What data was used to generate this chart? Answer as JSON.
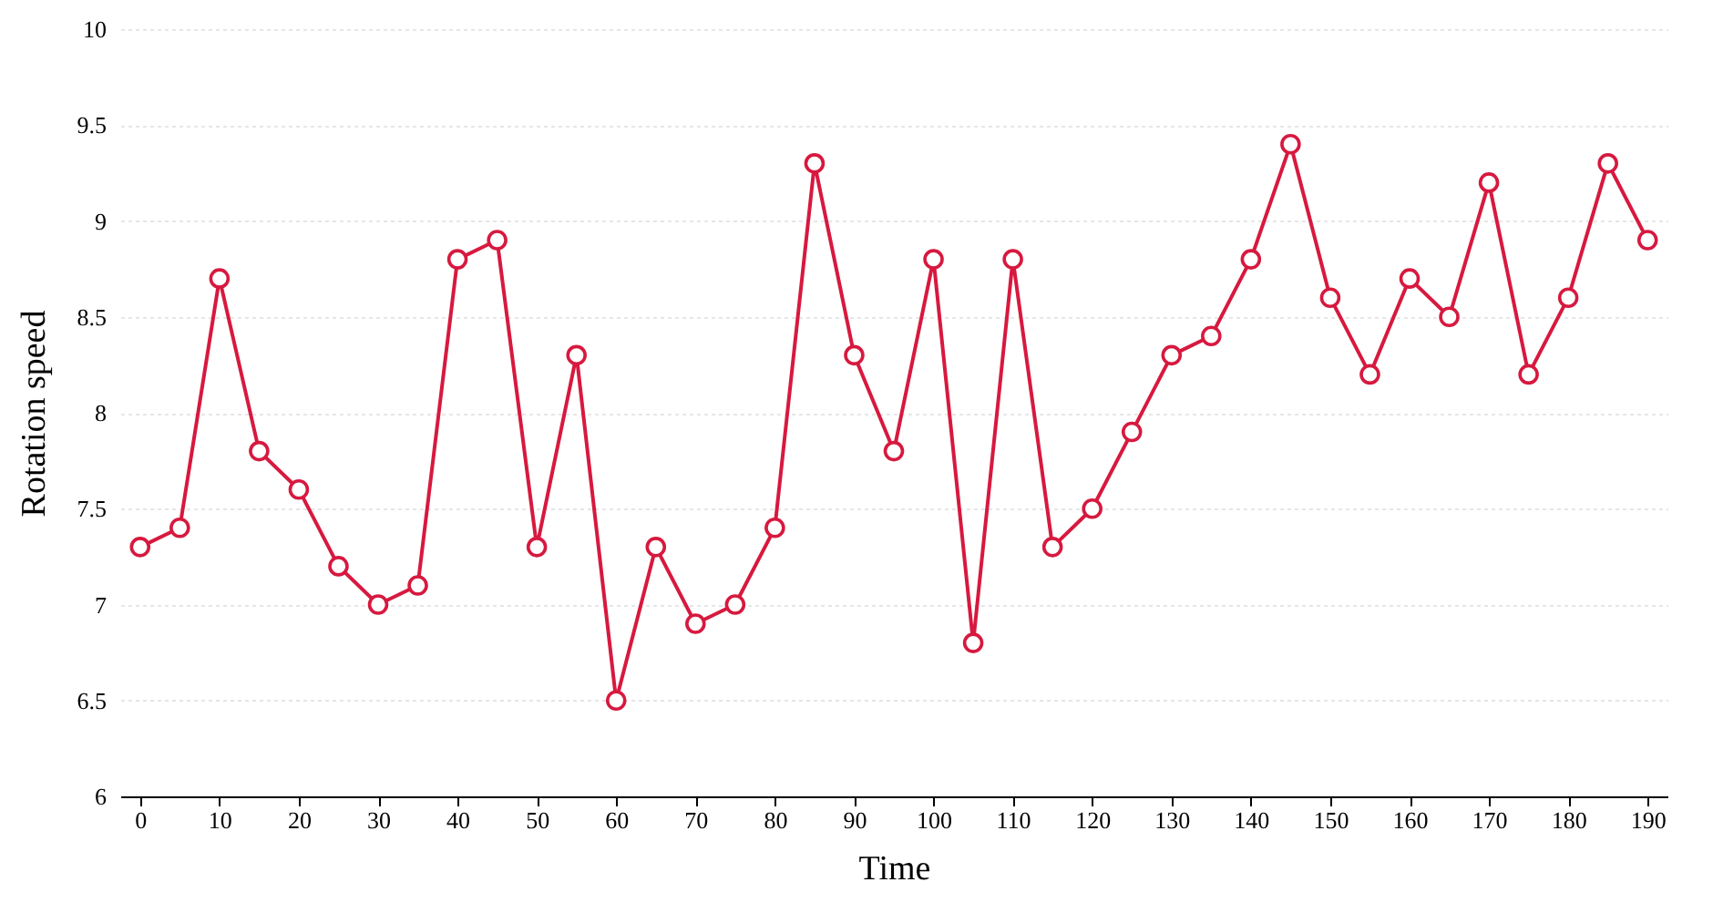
{
  "chart_data": {
    "type": "line",
    "xlabel": "Time",
    "ylabel": "Rotation speed",
    "x": [
      0,
      5,
      10,
      15,
      20,
      25,
      30,
      35,
      40,
      45,
      50,
      55,
      60,
      65,
      70,
      75,
      80,
      85,
      90,
      95,
      100,
      105,
      110,
      115,
      120,
      125,
      130,
      135,
      140,
      145,
      150,
      155,
      160,
      165,
      170,
      175,
      180,
      185,
      190
    ],
    "series": [
      {
        "color": "#d7193f",
        "values": [
          7.3,
          7.4,
          8.7,
          7.8,
          7.6,
          7.2,
          7.0,
          7.1,
          8.8,
          8.9,
          7.3,
          8.3,
          6.5,
          7.3,
          6.9,
          7.0,
          7.4,
          9.3,
          8.3,
          7.8,
          8.8,
          6.8,
          8.8,
          7.3,
          7.5,
          7.9,
          8.3,
          8.4,
          8.8,
          9.4,
          8.6,
          8.2,
          8.7,
          8.5,
          9.2,
          8.2,
          8.6,
          9.3,
          8.9
        ]
      }
    ],
    "xlim": [
      -2.5,
      192.5
    ],
    "xticks": [
      0,
      10,
      20,
      30,
      40,
      50,
      60,
      70,
      80,
      90,
      100,
      110,
      120,
      130,
      140,
      150,
      160,
      170,
      180,
      190
    ],
    "ylim": [
      6,
      10
    ],
    "yticks": [
      6,
      6.5,
      7,
      7.5,
      8,
      8.5,
      9,
      9.5,
      10
    ],
    "grid": "y",
    "marker": "circle",
    "line_style": "solid"
  }
}
